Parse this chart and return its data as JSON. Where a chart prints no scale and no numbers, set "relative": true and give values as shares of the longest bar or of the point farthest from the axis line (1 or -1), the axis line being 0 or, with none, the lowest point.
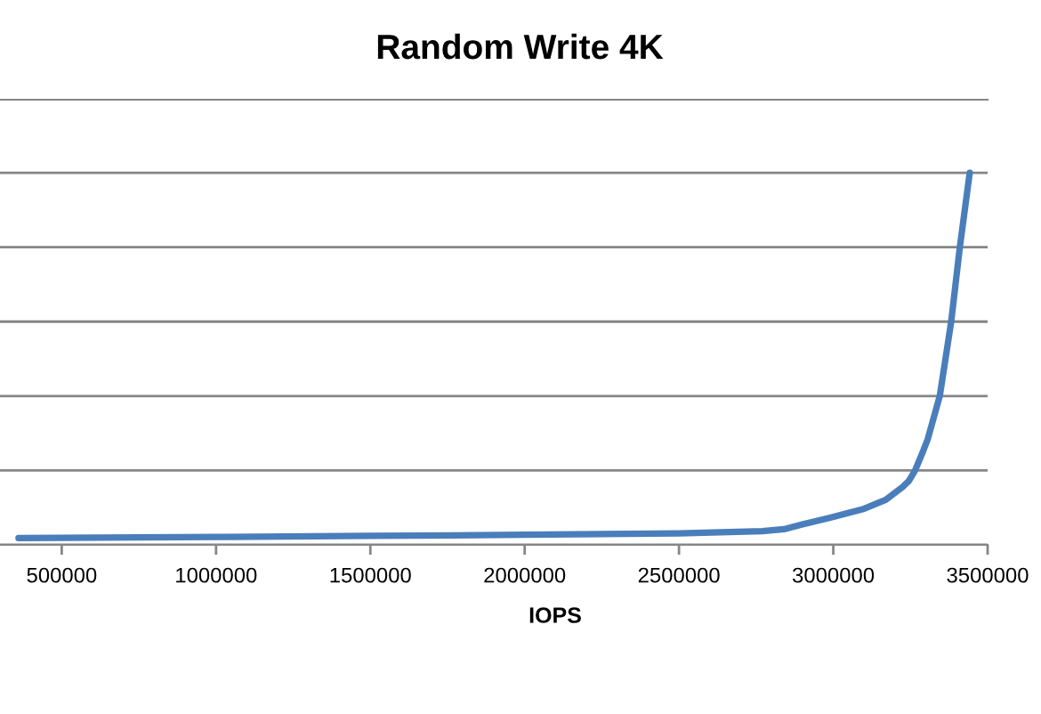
{
  "chart_data": {
    "type": "line",
    "title": "Random Write 4K",
    "xlabel": "IOPS",
    "relative": true,
    "xlim": [
      300000,
      3500000
    ],
    "xticks": [
      500000,
      1000000,
      1500000,
      2000000,
      2500000,
      3000000,
      3500000
    ],
    "tick_labels": "x",
    "grid": "y",
    "series": [
      {
        "color": "#4a7ebb",
        "x": [
          360000,
          1000000,
          1500000,
          2000000,
          2500000,
          2770000,
          2840000,
          2900000,
          2990000,
          3100000,
          3170000,
          3225000,
          3245000,
          3265000,
          3290000,
          3306000,
          3345000,
          3382000,
          3410000,
          3442000
        ],
        "values": [
          0.018,
          0.021,
          0.024,
          0.027,
          0.031,
          0.037,
          0.042,
          0.055,
          0.073,
          0.097,
          0.121,
          0.156,
          0.172,
          0.2,
          0.25,
          0.284,
          0.4,
          0.6,
          0.8,
          1
        ]
      }
    ]
  }
}
